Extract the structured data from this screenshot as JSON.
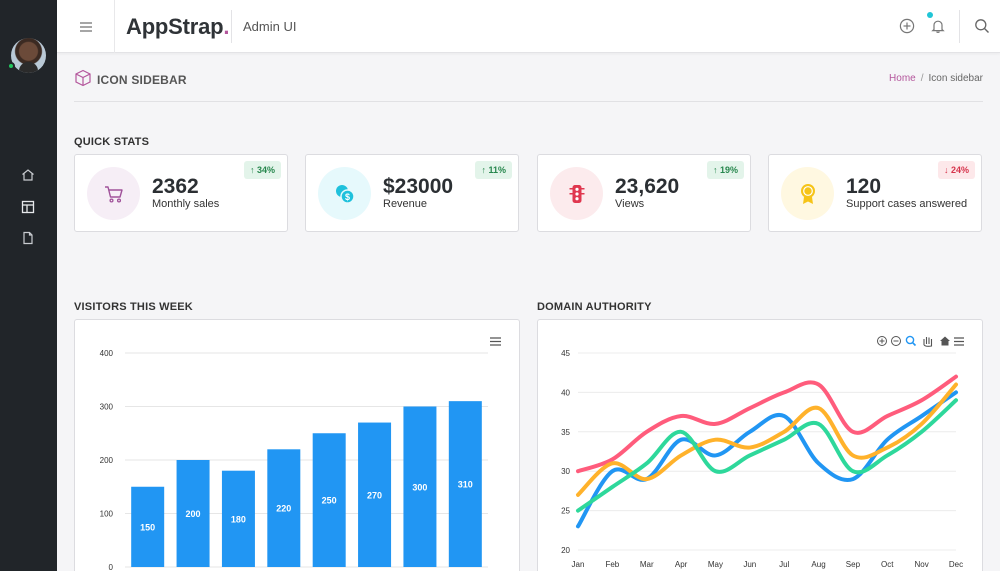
{
  "header": {
    "brand_part1": "AppStrap",
    "brand_part2": ".",
    "subtitle": "Admin UI"
  },
  "page": {
    "title": "ICON SIDEBAR",
    "breadcrumb": {
      "home": "Home",
      "separator": "/",
      "current": "Icon sidebar"
    }
  },
  "sections": {
    "quick_stats": "QUICK STATS",
    "visitors": "VISITORS THIS WEEK",
    "domain": "DOMAIN AUTHORITY"
  },
  "stats": [
    {
      "value": "2362",
      "label": "Monthly sales",
      "badge": "↑ 34%",
      "trend": "up",
      "icon": "cart-icon",
      "color": "#a0529a",
      "bg": "#f6eef6"
    },
    {
      "value": "$23000",
      "label": "Revenue",
      "badge": "↑ 11%",
      "trend": "up",
      "icon": "coins-icon",
      "color": "#1fc1dc",
      "bg": "#e6f9fc"
    },
    {
      "value": "23,620",
      "label": "Views",
      "badge": "↑ 19%",
      "trend": "up",
      "icon": "traffic-light-icon",
      "color": "#e0374f",
      "bg": "#fcebed"
    },
    {
      "value": "120",
      "label": "Support cases answered",
      "badge": "↓ 24%",
      "trend": "down",
      "icon": "award-icon",
      "color": "#f6c418",
      "bg": "#fff8e1"
    }
  ],
  "chart_data": [
    {
      "type": "bar",
      "title": "VISITORS THIS WEEK",
      "categories": [
        "",
        "",
        "",
        "",
        "",
        "",
        "",
        ""
      ],
      "values": [
        150,
        200,
        180,
        220,
        250,
        270,
        300,
        310
      ],
      "ylim": [
        0,
        400
      ],
      "yticks": [
        0,
        100,
        200,
        300,
        400
      ],
      "color": "#2196f3",
      "data_labels": true,
      "grid": true
    },
    {
      "type": "line",
      "title": "DOMAIN AUTHORITY",
      "categories": [
        "Jan",
        "Feb",
        "Mar",
        "Apr",
        "May",
        "Jun",
        "Jul",
        "Aug",
        "Sep",
        "Oct",
        "Nov",
        "Dec"
      ],
      "ylim": [
        20,
        45
      ],
      "yticks": [
        20,
        25,
        30,
        35,
        40,
        45
      ],
      "grid": true,
      "series": [
        {
          "color": "#ff5c7c",
          "values": [
            30,
            31.5,
            35,
            37,
            36,
            38,
            40,
            41,
            35,
            37,
            39,
            42
          ]
        },
        {
          "color": "#2196f3",
          "values": [
            23,
            30,
            29,
            34,
            32,
            35,
            37,
            31,
            29,
            34,
            37,
            40
          ]
        },
        {
          "color": "#ffb22b",
          "values": [
            27,
            31,
            29,
            32,
            34,
            33,
            35,
            38,
            32,
            33,
            36,
            41
          ]
        },
        {
          "color": "#2ed89b",
          "values": [
            25,
            28,
            31,
            35,
            30,
            32,
            34,
            36,
            30,
            32,
            35,
            39
          ]
        }
      ]
    }
  ]
}
